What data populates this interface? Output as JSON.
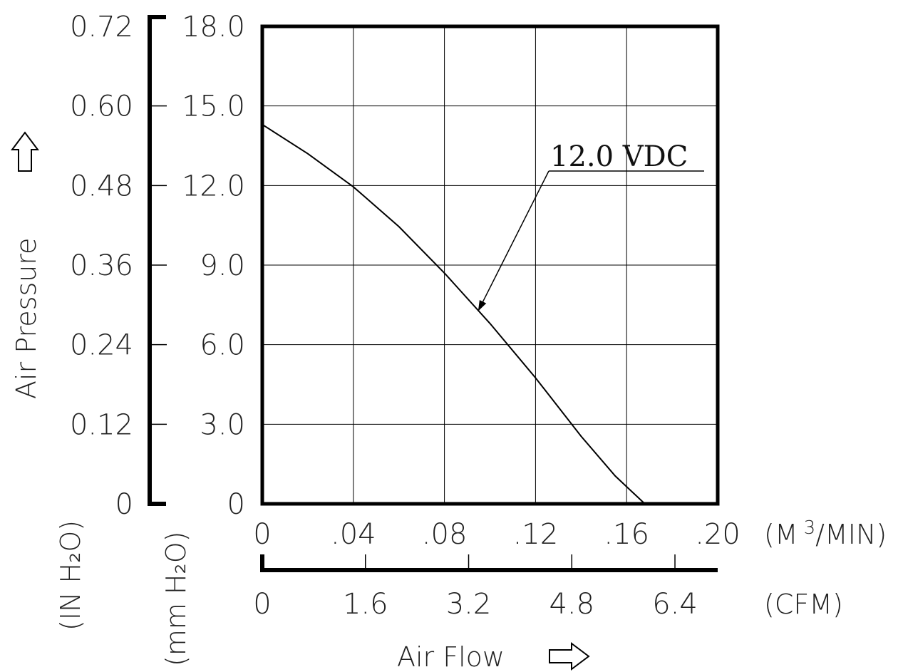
{
  "chart_data": {
    "type": "line",
    "series": [
      {
        "name": "12.0 VDC",
        "x": [
          0,
          0.02,
          0.04,
          0.06,
          0.08,
          0.1,
          0.12,
          0.14,
          0.155,
          0.168
        ],
        "y": [
          14.3,
          13.2,
          11.95,
          10.45,
          8.7,
          6.8,
          4.75,
          2.55,
          1.05,
          0
        ]
      }
    ],
    "xlim": [
      0,
      0.2
    ],
    "ylim": [
      0,
      18
    ],
    "x_ticks": [
      ".04",
      ".08",
      ".12",
      ".16",
      ".20"
    ],
    "x_zero": "0",
    "x_unit": "(M³/MIN)",
    "x_unit_main": "(M",
    "x_unit_sup": "3",
    "x_unit_tail": "/MIN)",
    "cfm_ticks": [
      "0",
      "1.6",
      "3.2",
      "4.8",
      "6.4"
    ],
    "cfm_unit": "(CFM)",
    "y_mm_ticks": [
      "0",
      "3.0",
      "6.0",
      "9.0",
      "12.0",
      "15.0",
      "18.0"
    ],
    "y_in_ticks": [
      "0",
      "0.12",
      "0.24",
      "0.36",
      "0.48",
      "0.60",
      "0.72"
    ],
    "ylabel": "Air Pressure",
    "y_unit_in": "(IN H₂O)",
    "y_unit_mm": "(mm H₂O)",
    "xlabel": "Air Flow",
    "annotation": "12.0 VDC",
    "grid": true
  }
}
